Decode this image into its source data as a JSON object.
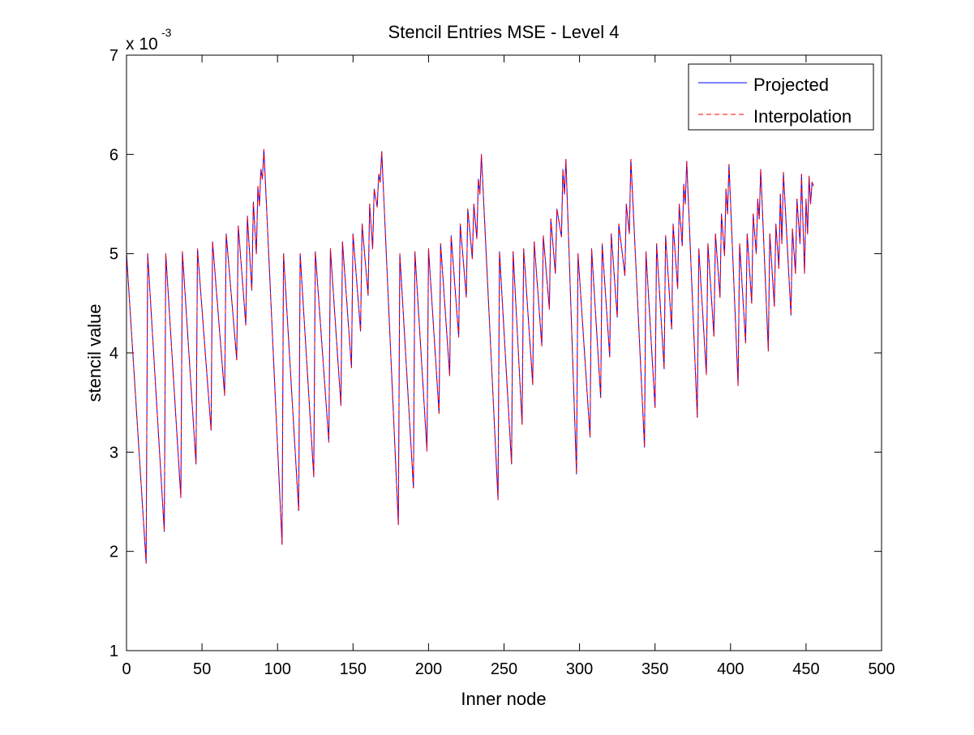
{
  "chart_data": {
    "type": "line",
    "title": "Stencil Entries MSE - Level 4",
    "xlabel": "Inner node",
    "ylabel": "stencil value",
    "y_exponent_label": "x 10",
    "y_exponent": "-3",
    "xlim": [
      0,
      500
    ],
    "ylim": [
      1,
      7
    ],
    "xticks": [
      0,
      50,
      100,
      150,
      200,
      250,
      300,
      350,
      400,
      450,
      500
    ],
    "xtick_labels": [
      "0",
      "50",
      "100",
      "150",
      "200",
      "250",
      "300",
      "350",
      "400",
      "450",
      "500"
    ],
    "yticks": [
      1,
      2,
      3,
      4,
      5,
      6,
      7
    ],
    "ytick_labels": [
      "1",
      "2",
      "3",
      "4",
      "5",
      "6",
      "7"
    ],
    "grid": false,
    "legend_position": "top-right",
    "series": [
      {
        "name": "Projected",
        "color": "#0000ff",
        "style": "solid",
        "points": [
          [
            0,
            5.0
          ],
          [
            13,
            1.88
          ],
          [
            14,
            5.0
          ],
          [
            25,
            2.2
          ],
          [
            26,
            5.0
          ],
          [
            36,
            2.54
          ],
          [
            37,
            5.02
          ],
          [
            46,
            2.88
          ],
          [
            47,
            5.05
          ],
          [
            56,
            3.22
          ],
          [
            57,
            5.12
          ],
          [
            65,
            3.57
          ],
          [
            66,
            5.2
          ],
          [
            73,
            3.93
          ],
          [
            74,
            5.28
          ],
          [
            79,
            4.28
          ],
          [
            80,
            5.38
          ],
          [
            83,
            4.63
          ],
          [
            84,
            5.52
          ],
          [
            86,
            5.0
          ],
          [
            87,
            5.68
          ],
          [
            88,
            5.48
          ],
          [
            89,
            5.85
          ],
          [
            90,
            5.75
          ],
          [
            91,
            6.05
          ],
          [
            103,
            2.07
          ],
          [
            104,
            5.0
          ],
          [
            114,
            2.41
          ],
          [
            115,
            5.0
          ],
          [
            124,
            2.75
          ],
          [
            125,
            5.02
          ],
          [
            134,
            3.1
          ],
          [
            135,
            5.05
          ],
          [
            142,
            3.47
          ],
          [
            143,
            5.12
          ],
          [
            149,
            3.85
          ],
          [
            150,
            5.2
          ],
          [
            155,
            4.22
          ],
          [
            156,
            5.3
          ],
          [
            160,
            4.58
          ],
          [
            161,
            5.5
          ],
          [
            163,
            5.05
          ],
          [
            164,
            5.65
          ],
          [
            166,
            5.47
          ],
          [
            167,
            5.8
          ],
          [
            168,
            5.72
          ],
          [
            169,
            6.03
          ],
          [
            180,
            2.27
          ],
          [
            181,
            5.0
          ],
          [
            190,
            2.64
          ],
          [
            191,
            5.02
          ],
          [
            199,
            3.01
          ],
          [
            200,
            5.05
          ],
          [
            207,
            3.39
          ],
          [
            208,
            5.1
          ],
          [
            214,
            3.77
          ],
          [
            215,
            5.18
          ],
          [
            220,
            4.16
          ],
          [
            221,
            5.3
          ],
          [
            225,
            4.56
          ],
          [
            226,
            5.45
          ],
          [
            229,
            4.95
          ],
          [
            230,
            5.5
          ],
          [
            232,
            5.15
          ],
          [
            233,
            5.75
          ],
          [
            234,
            5.6
          ],
          [
            235,
            6.0
          ],
          [
            246,
            2.52
          ],
          [
            247,
            5.02
          ],
          [
            255,
            2.88
          ],
          [
            256,
            5.02
          ],
          [
            262,
            3.28
          ],
          [
            263,
            5.05
          ],
          [
            269,
            3.68
          ],
          [
            270,
            5.12
          ],
          [
            275,
            4.07
          ],
          [
            276,
            5.18
          ],
          [
            280,
            4.44
          ],
          [
            281,
            5.35
          ],
          [
            284,
            4.8
          ],
          [
            285,
            5.45
          ],
          [
            288,
            5.17
          ],
          [
            289,
            5.85
          ],
          [
            290,
            5.6
          ],
          [
            291,
            5.95
          ],
          [
            298,
            2.78
          ],
          [
            299,
            5.0
          ],
          [
            307,
            3.15
          ],
          [
            308,
            5.05
          ],
          [
            314,
            3.55
          ],
          [
            315,
            5.1
          ],
          [
            320,
            3.96
          ],
          [
            321,
            5.2
          ],
          [
            325,
            4.36
          ],
          [
            326,
            5.3
          ],
          [
            330,
            4.78
          ],
          [
            331,
            5.5
          ],
          [
            333,
            5.2
          ],
          [
            334,
            5.95
          ],
          [
            343,
            3.05
          ],
          [
            344,
            5.02
          ],
          [
            350,
            3.45
          ],
          [
            351,
            5.1
          ],
          [
            356,
            3.84
          ],
          [
            357,
            5.18
          ],
          [
            361,
            4.24
          ],
          [
            362,
            5.3
          ],
          [
            365,
            4.65
          ],
          [
            366,
            5.5
          ],
          [
            368,
            5.08
          ],
          [
            369,
            5.7
          ],
          [
            370,
            5.5
          ],
          [
            371,
            5.93
          ],
          [
            378,
            3.35
          ],
          [
            379,
            5.05
          ],
          [
            384,
            3.78
          ],
          [
            385,
            5.1
          ],
          [
            389,
            4.17
          ],
          [
            390,
            5.2
          ],
          [
            393,
            4.56
          ],
          [
            394,
            5.4
          ],
          [
            396,
            4.98
          ],
          [
            397,
            5.65
          ],
          [
            398,
            5.4
          ],
          [
            399,
            5.9
          ],
          [
            405,
            3.67
          ],
          [
            406,
            5.1
          ],
          [
            410,
            4.1
          ],
          [
            411,
            5.2
          ],
          [
            414,
            4.5
          ],
          [
            415,
            5.4
          ],
          [
            417,
            5.0
          ],
          [
            418,
            5.55
          ],
          [
            419,
            5.35
          ],
          [
            420,
            5.85
          ],
          [
            425,
            4.02
          ],
          [
            426,
            5.2
          ],
          [
            429,
            4.47
          ],
          [
            430,
            5.3
          ],
          [
            432,
            4.85
          ],
          [
            433,
            5.6
          ],
          [
            434,
            5.1
          ],
          [
            435,
            5.82
          ],
          [
            440,
            4.38
          ],
          [
            441,
            5.25
          ],
          [
            443,
            4.8
          ],
          [
            444,
            5.55
          ],
          [
            446,
            5.1
          ],
          [
            447,
            5.8
          ],
          [
            449,
            4.8
          ],
          [
            450,
            5.55
          ],
          [
            451,
            5.2
          ],
          [
            452,
            5.78
          ],
          [
            453,
            5.5
          ],
          [
            454,
            5.72
          ],
          [
            455,
            5.68
          ]
        ]
      },
      {
        "name": "Interpolation",
        "color": "#ff0000",
        "style": "dashed",
        "points": [
          [
            0,
            5.0
          ],
          [
            13,
            1.88
          ],
          [
            14,
            5.0
          ],
          [
            25,
            2.2
          ],
          [
            26,
            5.0
          ],
          [
            36,
            2.54
          ],
          [
            37,
            5.02
          ],
          [
            46,
            2.88
          ],
          [
            47,
            5.05
          ],
          [
            56,
            3.22
          ],
          [
            57,
            5.12
          ],
          [
            65,
            3.57
          ],
          [
            66,
            5.2
          ],
          [
            73,
            3.93
          ],
          [
            74,
            5.28
          ],
          [
            79,
            4.28
          ],
          [
            80,
            5.38
          ],
          [
            83,
            4.63
          ],
          [
            84,
            5.52
          ],
          [
            86,
            5.0
          ],
          [
            87,
            5.68
          ],
          [
            88,
            5.48
          ],
          [
            89,
            5.85
          ],
          [
            90,
            5.75
          ],
          [
            91,
            6.05
          ],
          [
            103,
            2.07
          ],
          [
            104,
            5.0
          ],
          [
            114,
            2.41
          ],
          [
            115,
            5.0
          ],
          [
            124,
            2.75
          ],
          [
            125,
            5.02
          ],
          [
            134,
            3.1
          ],
          [
            135,
            5.05
          ],
          [
            142,
            3.47
          ],
          [
            143,
            5.12
          ],
          [
            149,
            3.85
          ],
          [
            150,
            5.2
          ],
          [
            155,
            4.22
          ],
          [
            156,
            5.3
          ],
          [
            160,
            4.58
          ],
          [
            161,
            5.5
          ],
          [
            163,
            5.05
          ],
          [
            164,
            5.65
          ],
          [
            166,
            5.47
          ],
          [
            167,
            5.8
          ],
          [
            168,
            5.72
          ],
          [
            169,
            6.03
          ],
          [
            180,
            2.27
          ],
          [
            181,
            5.0
          ],
          [
            190,
            2.64
          ],
          [
            191,
            5.02
          ],
          [
            199,
            3.01
          ],
          [
            200,
            5.05
          ],
          [
            207,
            3.39
          ],
          [
            208,
            5.1
          ],
          [
            214,
            3.77
          ],
          [
            215,
            5.18
          ],
          [
            220,
            4.16
          ],
          [
            221,
            5.3
          ],
          [
            225,
            4.56
          ],
          [
            226,
            5.45
          ],
          [
            229,
            4.95
          ],
          [
            230,
            5.5
          ],
          [
            232,
            5.15
          ],
          [
            233,
            5.75
          ],
          [
            234,
            5.6
          ],
          [
            235,
            6.0
          ],
          [
            246,
            2.52
          ],
          [
            247,
            5.02
          ],
          [
            255,
            2.88
          ],
          [
            256,
            5.02
          ],
          [
            262,
            3.28
          ],
          [
            263,
            5.05
          ],
          [
            269,
            3.68
          ],
          [
            270,
            5.12
          ],
          [
            275,
            4.07
          ],
          [
            276,
            5.18
          ],
          [
            280,
            4.44
          ],
          [
            281,
            5.35
          ],
          [
            284,
            4.8
          ],
          [
            285,
            5.45
          ],
          [
            288,
            5.17
          ],
          [
            289,
            5.85
          ],
          [
            290,
            5.6
          ],
          [
            291,
            5.95
          ],
          [
            298,
            2.78
          ],
          [
            299,
            5.0
          ],
          [
            307,
            3.15
          ],
          [
            308,
            5.05
          ],
          [
            314,
            3.55
          ],
          [
            315,
            5.1
          ],
          [
            320,
            3.96
          ],
          [
            321,
            5.2
          ],
          [
            325,
            4.36
          ],
          [
            326,
            5.3
          ],
          [
            330,
            4.78
          ],
          [
            331,
            5.5
          ],
          [
            333,
            5.2
          ],
          [
            334,
            5.95
          ],
          [
            343,
            3.05
          ],
          [
            344,
            5.02
          ],
          [
            350,
            3.45
          ],
          [
            351,
            5.1
          ],
          [
            356,
            3.84
          ],
          [
            357,
            5.18
          ],
          [
            361,
            4.24
          ],
          [
            362,
            5.3
          ],
          [
            365,
            4.65
          ],
          [
            366,
            5.5
          ],
          [
            368,
            5.08
          ],
          [
            369,
            5.7
          ],
          [
            370,
            5.5
          ],
          [
            371,
            5.93
          ],
          [
            378,
            3.35
          ],
          [
            379,
            5.05
          ],
          [
            384,
            3.78
          ],
          [
            385,
            5.1
          ],
          [
            389,
            4.17
          ],
          [
            390,
            5.2
          ],
          [
            393,
            4.56
          ],
          [
            394,
            5.4
          ],
          [
            396,
            4.98
          ],
          [
            397,
            5.65
          ],
          [
            398,
            5.4
          ],
          [
            399,
            5.9
          ],
          [
            405,
            3.67
          ],
          [
            406,
            5.1
          ],
          [
            410,
            4.1
          ],
          [
            411,
            5.2
          ],
          [
            414,
            4.5
          ],
          [
            415,
            5.4
          ],
          [
            417,
            5.0
          ],
          [
            418,
            5.55
          ],
          [
            419,
            5.35
          ],
          [
            420,
            5.85
          ],
          [
            425,
            4.02
          ],
          [
            426,
            5.2
          ],
          [
            429,
            4.47
          ],
          [
            430,
            5.3
          ],
          [
            432,
            4.85
          ],
          [
            433,
            5.6
          ],
          [
            434,
            5.1
          ],
          [
            435,
            5.82
          ],
          [
            440,
            4.38
          ],
          [
            441,
            5.25
          ],
          [
            443,
            4.8
          ],
          [
            444,
            5.55
          ],
          [
            446,
            5.1
          ],
          [
            447,
            5.8
          ],
          [
            449,
            4.8
          ],
          [
            450,
            5.55
          ],
          [
            451,
            5.2
          ],
          [
            452,
            5.78
          ],
          [
            453,
            5.5
          ],
          [
            454,
            5.72
          ],
          [
            455,
            5.68
          ]
        ]
      }
    ]
  }
}
